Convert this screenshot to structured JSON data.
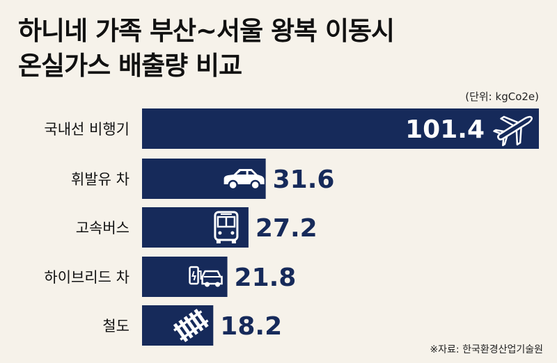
{
  "title_line1": "하니네 가족 부산~서울 왕복 이동시",
  "title_line2": "온실가스 배출량 비교",
  "unit_note": "(단위: kgCo2e)",
  "source_note": "※자료: 한국환경산업기술원",
  "colors": {
    "bar": "#162a5a",
    "text": "#111111",
    "background": "#f6f2ea"
  },
  "chart_data": {
    "type": "bar",
    "orientation": "horizontal",
    "categories": [
      "국내선 비행기",
      "휘발유 차",
      "고속버스",
      "하이브리드 차",
      "철도"
    ],
    "values": [
      101.4,
      31.6,
      27.2,
      21.8,
      18.2
    ],
    "value_labels": [
      "101.4",
      "31.6",
      "27.2",
      "21.8",
      "18.2"
    ],
    "icons": [
      "airplane-icon",
      "car-icon",
      "bus-icon",
      "hybrid-car-icon",
      "railway-track-icon"
    ],
    "xlim": [
      0,
      101.4
    ],
    "grid": false,
    "legend": "none"
  }
}
